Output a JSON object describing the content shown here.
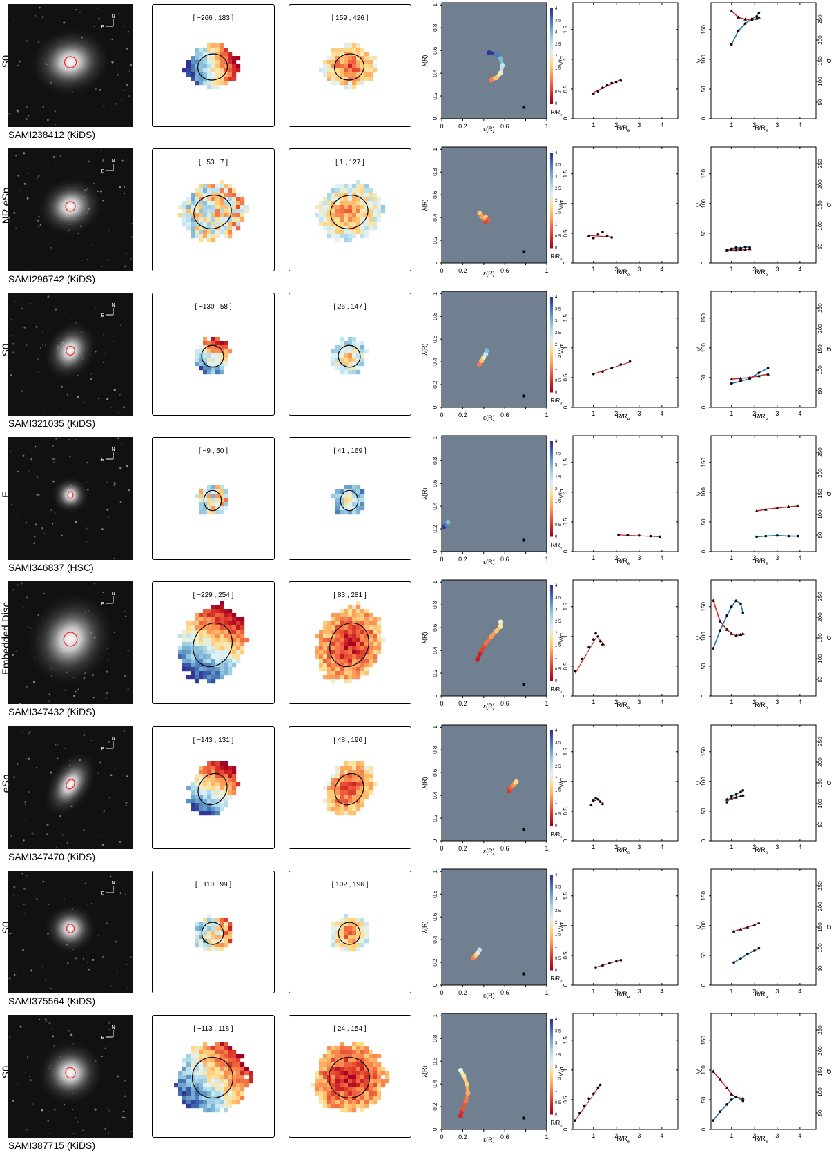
{
  "axis_text": {
    "lambda_label": "λ(R)",
    "eps_label": "ε(R)",
    "vsig_label": "V/σ",
    "v_label": "V",
    "sigma_label": "σ",
    "rre_label": "R/R",
    "rre_sub": "e",
    "cbar_label": "R/R",
    "cbar_sub": "e",
    "compass_n": "N",
    "compass_e": "E",
    "lambda_ticks": [
      "0",
      "0.2",
      "0.4",
      "0.6",
      "0.8",
      "1"
    ],
    "eps_ticks": [
      "0",
      "0.2",
      "0.6",
      "1"
    ],
    "cbar_ticks": [
      "0",
      "0.5",
      "1",
      "1.5",
      "2",
      "2.5",
      "3",
      "3.5",
      "4"
    ],
    "vsig_ticks": [
      "0",
      "0.5",
      "1",
      "1.5"
    ],
    "rre_ticks": [
      "1",
      "2",
      "3",
      "4"
    ],
    "v_ticks": [
      "0",
      "50",
      "100",
      "150"
    ],
    "sigma_ticks": [
      "50",
      "100",
      "150",
      "200",
      "250"
    ]
  },
  "colors": {
    "cmap": [
      "#a50026",
      "#d73027",
      "#f46d43",
      "#fdae61",
      "#fee090",
      "#e0f3f8",
      "#abd9e9",
      "#74add1",
      "#4575b4",
      "#313695"
    ],
    "lambda_bg": "#708090",
    "model_red": "#d62728",
    "model_blue": "#1f77b4"
  },
  "galaxies": [
    {
      "type": "S0",
      "name": "SAMI238412 (KiDS)",
      "vel_range": "[ −266 , 183 ]",
      "sig_range": "[ 159 , 426 ]",
      "morph": {
        "ecc": 0.55,
        "pa": -12,
        "size": 0.55
      },
      "kin": {
        "ecc": 0.62,
        "pa": -10,
        "rx": 0.22,
        "vgrad": 1,
        "sigc": 0.15
      },
      "lambda": {
        "eps": [
          0.45,
          0.52,
          0.56,
          0.58,
          0.56,
          0.52,
          0.47
        ],
        "lam": [
          0.58,
          0.57,
          0.53,
          0.47,
          0.4,
          0.36,
          0.34
        ],
        "r": [
          4,
          3.5,
          3,
          2.5,
          2,
          1.5,
          1
        ]
      },
      "vs": {
        "r": [
          1.0,
          1.2,
          1.4,
          1.6,
          1.8,
          2.0,
          2.2
        ],
        "v": [
          0.42,
          0.46,
          0.52,
          0.57,
          0.6,
          0.62,
          0.64
        ],
        "model": [
          [
            1.0,
            0.44
          ],
          [
            2.2,
            0.66
          ]
        ]
      },
      "vsig": {
        "r": [
          1.0,
          1.3,
          1.6,
          1.9,
          2.1,
          2.2
        ],
        "v": [
          125,
          148,
          160,
          168,
          172,
          178
        ],
        "s": [
          270,
          255,
          250,
          248,
          252,
          255
        ]
      }
    },
    {
      "type": "NR eSp",
      "name": "SAMI296742 (KiDS)",
      "vel_range": "[ −53 , 7 ]",
      "sig_range": "[ 1 , 127 ]",
      "morph": {
        "ecc": 0.5,
        "pa": -18,
        "size": 0.4
      },
      "kin": {
        "ecc": 0.6,
        "pa": -18,
        "rx": 0.28,
        "vgrad": 0.2,
        "sigc": 0.25
      },
      "lambda": {
        "eps": [
          0.36,
          0.38,
          0.41,
          0.42,
          0.44,
          0.42
        ],
        "lam": [
          0.44,
          0.41,
          0.38,
          0.4,
          0.38,
          0.36
        ],
        "r": [
          1.5,
          1.2,
          1.0,
          1.6,
          0.8,
          0.6
        ]
      },
      "vs": {
        "r": [
          0.8,
          1.0,
          1.2,
          1.4,
          1.6,
          1.8
        ],
        "v": [
          0.45,
          0.42,
          0.48,
          0.52,
          0.46,
          0.43
        ],
        "model": [
          [
            0.8,
            0.46
          ],
          [
            1.8,
            0.44
          ]
        ]
      },
      "vsig": {
        "r": [
          0.8,
          1.0,
          1.2,
          1.4,
          1.6,
          1.8
        ],
        "v": [
          22,
          24,
          26,
          25,
          27,
          26
        ],
        "s": [
          40,
          42,
          41,
          43,
          42,
          44
        ]
      }
    },
    {
      "type": "S0",
      "name": "SAMI321035 (KiDS)",
      "vel_range": "[ −130 , 58 ]",
      "sig_range": "[ 26 , 147 ]",
      "morph": {
        "ecc": 0.6,
        "pa": -60,
        "size": 0.35
      },
      "kin": {
        "ecc": 0.45,
        "pa": -60,
        "rx": 0.16,
        "vgrad": 0.8,
        "sigc": 0.35
      },
      "lambda": {
        "eps": [
          0.36,
          0.38,
          0.4,
          0.42,
          0.43
        ],
        "lam": [
          0.38,
          0.41,
          0.44,
          0.47,
          0.5
        ],
        "r": [
          1,
          1.5,
          2,
          2.5,
          3
        ]
      },
      "vs": {
        "r": [
          1.0,
          1.4,
          1.8,
          2.2,
          2.6
        ],
        "v": [
          0.56,
          0.6,
          0.66,
          0.72,
          0.77
        ],
        "model": [
          [
            1.0,
            0.56
          ],
          [
            2.6,
            0.76
          ]
        ]
      },
      "vsig": {
        "r": [
          1.0,
          1.4,
          1.8,
          2.2,
          2.6
        ],
        "v": [
          40,
          44,
          48,
          58,
          66
        ],
        "s": [
          78,
          80,
          82,
          86,
          90
        ]
      }
    },
    {
      "type": "E",
      "name": "SAMI346837 (HSC)",
      "vel_range": "[ −9 , 50 ]",
      "sig_range": "[ 41 , 169 ]",
      "morph": {
        "ecc": 0.1,
        "pa": 0,
        "size": 0.1
      },
      "kin": {
        "ecc": 0.05,
        "pa": 0,
        "rx": 0.13,
        "vgrad": 0.1,
        "sigc": 0.45
      },
      "lambda": {
        "eps": [
          0.02,
          0.04,
          0.06
        ],
        "lam": [
          0.22,
          0.24,
          0.26
        ],
        "r": [
          4,
          3.5,
          3
        ]
      },
      "vs": {
        "r": [
          2.1,
          2.5,
          3.0,
          3.5,
          3.9
        ],
        "v": [
          0.28,
          0.28,
          0.27,
          0.26,
          0.25
        ],
        "model": [
          [
            2.1,
            0.28
          ],
          [
            3.9,
            0.25
          ]
        ]
      },
      "vsig": {
        "r": [
          2.1,
          2.5,
          3.0,
          3.5,
          3.9
        ],
        "v": [
          25,
          26,
          27,
          26,
          26
        ],
        "s": [
          108,
          112,
          115,
          118,
          120
        ]
      }
    },
    {
      "type": "Embedded Disc",
      "name": "SAMI347432 (KiDS)",
      "vel_range": "[ −229 , 254 ]",
      "sig_range": "[ 83 , 281 ]",
      "morph": {
        "ecc": 0.5,
        "pa": -60,
        "size": 0.7
      },
      "kin": {
        "ecc": 0.62,
        "pa": -65,
        "rx": 0.33,
        "vgrad": 1,
        "sigc": 0.05
      },
      "lambda": {
        "eps": [
          0.34,
          0.38,
          0.42,
          0.47,
          0.52,
          0.56,
          0.56
        ],
        "lam": [
          0.32,
          0.4,
          0.46,
          0.52,
          0.57,
          0.61,
          0.65
        ],
        "r": [
          0.3,
          0.6,
          0.9,
          1.2,
          1.5,
          1.8,
          2.1
        ]
      },
      "vs": {
        "r": [
          0.2,
          0.5,
          0.8,
          1.0,
          1.1,
          1.2,
          1.3,
          1.4
        ],
        "v": [
          0.42,
          0.62,
          0.82,
          0.95,
          1.05,
          1.0,
          0.92,
          0.86
        ],
        "model": [
          [
            0.2,
            0.38
          ],
          [
            1.15,
            1.0
          ],
          [
            1.5,
            0.85
          ]
        ]
      },
      "vsig": {
        "r": [
          0.2,
          0.5,
          0.8,
          1.0,
          1.2,
          1.4,
          1.5
        ],
        "v": [
          80,
          110,
          135,
          150,
          160,
          155,
          140
        ],
        "s": [
          240,
          190,
          170,
          160,
          155,
          158,
          160
        ]
      }
    },
    {
      "type": "eSp",
      "name": "SAMI347470 (KiDS)",
      "vel_range": "[ −143 , 131 ]",
      "sig_range": "[ 48 , 196 ]",
      "morph": {
        "ecc": 0.8,
        "pa": -58,
        "size": 0.45
      },
      "kin": {
        "ecc": 0.65,
        "pa": -58,
        "rx": 0.24,
        "vgrad": 1,
        "sigc": 0.12
      },
      "lambda": {
        "eps": [
          0.64,
          0.66,
          0.68,
          0.7,
          0.71
        ],
        "lam": [
          0.44,
          0.47,
          0.49,
          0.51,
          0.52
        ],
        "r": [
          0.5,
          0.8,
          1.1,
          1.4,
          1.7
        ]
      },
      "vs": {
        "r": [
          0.9,
          1.0,
          1.1,
          1.2,
          1.3,
          1.4
        ],
        "v": [
          0.6,
          0.68,
          0.72,
          0.7,
          0.66,
          0.62
        ],
        "model": [
          [
            0.9,
            0.65
          ],
          [
            1.2,
            0.7
          ],
          [
            1.4,
            0.64
          ]
        ]
      },
      "vsig": {
        "r": [
          0.8,
          1.0,
          1.2,
          1.4,
          1.5
        ],
        "v": [
          65,
          75,
          78,
          82,
          85
        ],
        "s": [
          110,
          112,
          115,
          118,
          120
        ]
      }
    },
    {
      "type": "S0",
      "name": "SAMI375564 (KiDS)",
      "vel_range": "[ −110 , 99 ]",
      "sig_range": "[ 102 , 196 ]",
      "morph": {
        "ecc": 0.3,
        "pa": -5,
        "size": 0.25
      },
      "kin": {
        "ecc": 0.45,
        "pa": -10,
        "rx": 0.16,
        "vgrad": 0.5,
        "sigc": 0.2
      },
      "lambda": {
        "eps": [
          0.3,
          0.32,
          0.34,
          0.36
        ],
        "lam": [
          0.24,
          0.26,
          0.28,
          0.31
        ],
        "r": [
          1,
          1.5,
          2,
          2.5
        ]
      },
      "vs": {
        "r": [
          1.1,
          1.4,
          1.7,
          2.0,
          2.2
        ],
        "v": [
          0.3,
          0.33,
          0.37,
          0.4,
          0.42
        ],
        "model": [
          [
            1.1,
            0.3
          ],
          [
            2.2,
            0.42
          ]
        ]
      },
      "vsig": {
        "r": [
          1.1,
          1.4,
          1.7,
          2.0,
          2.2
        ],
        "v": [
          38,
          45,
          52,
          58,
          62
        ],
        "s": [
          140,
          145,
          150,
          155,
          160
        ]
      }
    },
    {
      "type": "S0",
      "name": "SAMI387715 (KiDS)",
      "vel_range": "[ −113 , 118 ]",
      "sig_range": "[ 24 , 154 ]",
      "morph": {
        "ecc": 0.3,
        "pa": -25,
        "size": 0.4
      },
      "kin": {
        "ecc": 0.35,
        "pa": -40,
        "rx": 0.3,
        "vgrad": 0.9,
        "sigc": 0.02
      },
      "lambda": {
        "eps": [
          0.18,
          0.2,
          0.23,
          0.25,
          0.24,
          0.21,
          0.18
        ],
        "lam": [
          0.12,
          0.18,
          0.25,
          0.32,
          0.4,
          0.47,
          0.52
        ],
        "r": [
          0.4,
          0.7,
          1.0,
          1.3,
          1.6,
          1.9,
          2.2
        ]
      },
      "vs": {
        "r": [
          0.2,
          0.4,
          0.6,
          0.8,
          1.0,
          1.2,
          1.3
        ],
        "v": [
          0.15,
          0.28,
          0.4,
          0.52,
          0.6,
          0.7,
          0.75
        ],
        "model": [
          [
            0.2,
            0.15
          ],
          [
            1.3,
            0.75
          ]
        ]
      },
      "vsig": {
        "r": [
          0.2,
          0.5,
          0.8,
          1.0,
          1.2,
          1.5
        ],
        "v": [
          15,
          30,
          42,
          50,
          55,
          48
        ],
        "s": [
          150,
          130,
          110,
          95,
          88,
          85
        ]
      }
    }
  ]
}
